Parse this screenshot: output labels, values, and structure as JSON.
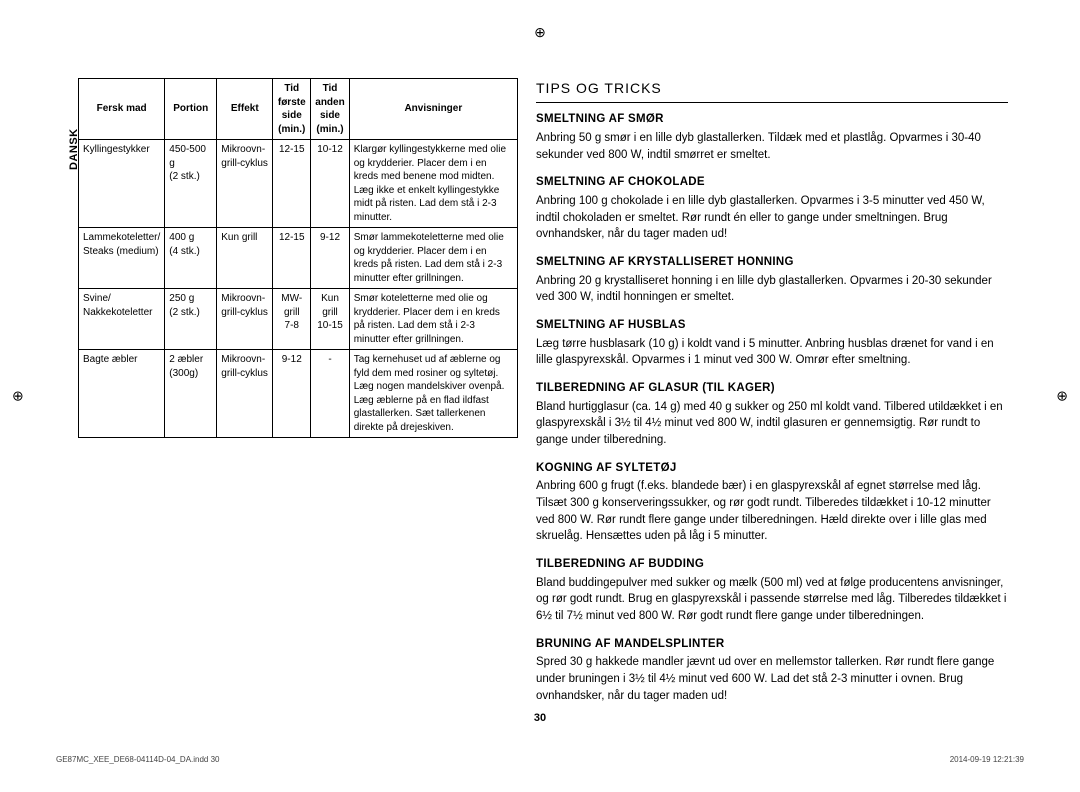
{
  "language_tab": "DANSK",
  "registration_mark": "⊕",
  "page_number": "30",
  "footer": {
    "left": "GE87MC_XEE_DE68-04114D-04_DA.indd   30",
    "right": "2014-09-19   12:21:39"
  },
  "table": {
    "headers": {
      "food": "Fersk mad",
      "portion": "Portion",
      "power": "Effekt",
      "time1": "Tid\nførste\nside\n(min.)",
      "time2": "Tid\nanden\nside\n(min.)",
      "instructions": "Anvisninger"
    },
    "rows": [
      {
        "food": "Kyllingestykker",
        "portion": "450-500 g\n(2 stk.)",
        "power": "Mikroovn-\ngrill-cyklus",
        "t1": "12-15",
        "t2": "10-12",
        "instr": "Klargør kyllingestykkerne med olie og krydderier. Placer dem i en kreds med benene mod midten. Læg ikke et enkelt kyllingestykke midt på risten. Lad dem stå i 2-3 minutter."
      },
      {
        "food": "Lammekoteletter/\nSteaks (medium)",
        "portion": "400 g\n(4 stk.)",
        "power": "Kun grill",
        "t1": "12-15",
        "t2": "9-12",
        "instr": "Smør lammekoteletterne med olie og krydderier. Placer dem i en kreds på risten. Lad dem stå i 2-3 minutter efter grillningen."
      },
      {
        "food": "Svine/\nNakkekoteletter",
        "portion": "250 g\n(2 stk.)",
        "power": "Mikroovn-\ngrill-cyklus",
        "t1": "MW-\ngrill\n7-8",
        "t2": "Kun\ngrill\n10-15",
        "instr": "Smør koteletterne med olie og krydderier. Placer dem i en kreds på risten. Lad dem stå i 2-3 minutter efter grillningen."
      },
      {
        "food": "Bagte æbler",
        "portion": "2 æbler\n(300g)",
        "power": "Mikroovn-\ngrill-cyklus",
        "t1": "9-12",
        "t2": "-",
        "instr": "Tag kernehuset ud af æblerne og fyld dem med rosiner og syltetøj. Læg nogen mandelskiver ovenpå. Læg æblerne på en flad ildfast glastallerken. Sæt tallerkenen direkte på drejeskiven."
      }
    ]
  },
  "right_section": {
    "title": "TIPS OG TRICKS",
    "tips": [
      {
        "head": "SMELTNING AF SMØR",
        "body": "Anbring 50 g smør i en lille dyb glastallerken. Tildæk med et plastlåg. Opvarmes i 30-40 sekunder ved 800 W, indtil smørret er smeltet."
      },
      {
        "head": "SMELTNING AF CHOKOLADE",
        "body": "Anbring 100 g chokolade i en lille dyb glastallerken. Opvarmes i 3-5 minutter ved 450 W, indtil chokoladen er smeltet. Rør rundt én eller to gange under smeltningen. Brug ovnhandsker, når du tager maden ud!"
      },
      {
        "head": "SMELTNING AF KRYSTALLISERET HONNING",
        "body": "Anbring 20 g krystalliseret honning i en lille dyb glastallerken. Opvarmes i 20-30 sekunder ved 300 W, indtil honningen er smeltet."
      },
      {
        "head": "SMELTNING AF HUSBLAS",
        "body": "Læg tørre husblasark (10 g) i koldt vand i 5 minutter. Anbring husblas drænet for vand i en lille glaspyrexskål. Opvarmes i 1 minut ved 300 W. Omrør efter smeltning."
      },
      {
        "head": "TILBEREDNING AF GLASUR (TIL KAGER)",
        "body": "Bland hurtigglasur (ca. 14 g) med 40 g sukker og 250 ml koldt vand. Tilbered utildækket i en glaspyrexskål i 3½ til 4½ minut ved 800 W, indtil glasuren er gennemsigtig. Rør rundt to gange under tilberedning."
      },
      {
        "head": "KOGNING AF SYLTETØJ",
        "body": "Anbring 600 g frugt (f.eks. blandede bær) i en glaspyrexskål af egnet størrelse med låg. Tilsæt 300 g konserveringssukker, og rør godt rundt. Tilberedes tildækket i 10-12 minutter ved 800 W. Rør rundt flere gange under tilberedningen. Hæld direkte over i lille glas med skruelåg. Hensættes uden på låg i 5 minutter."
      },
      {
        "head": "TILBEREDNING AF BUDDING",
        "body": "Bland buddingepulver med sukker og mælk (500 ml) ved at følge producentens anvisninger, og rør godt rundt. Brug en glaspyrexskål i passende størrelse med låg. Tilberedes tildækket i 6½ til 7½ minut ved 800 W. Rør godt rundt flere gange under tilberedningen."
      },
      {
        "head": "BRUNING AF MANDELSPLINTER",
        "body": "Spred 30 g hakkede mandler jævnt ud over en mellemstor tallerken. Rør rundt flere gange under bruningen i 3½ til 4½ minut ved 600 W. Lad det stå 2-3 minutter i ovnen. Brug ovnhandsker, når du tager maden ud!"
      }
    ]
  }
}
